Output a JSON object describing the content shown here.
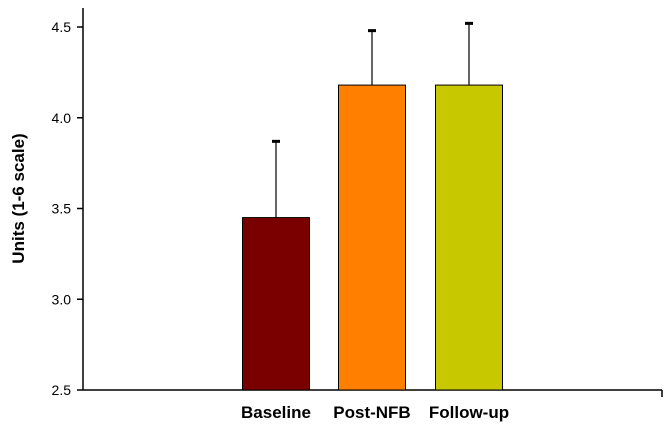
{
  "chart_data": {
    "type": "bar",
    "title": "",
    "xlabel": "",
    "ylabel": "Units (1-6 scale)",
    "ylim": [
      2.5,
      4.5
    ],
    "yticks": [
      "2.5",
      "3.0",
      "3.5",
      "4.0",
      "4.5"
    ],
    "grid": false,
    "categories": [
      "Baseline",
      "Post-NFB",
      "Follow-up"
    ],
    "values": [
      3.45,
      4.18,
      4.18
    ],
    "error_upper": [
      0.42,
      0.3,
      0.34
    ],
    "colors": [
      "#7a0000",
      "#ff7f00",
      "#c8c800"
    ]
  }
}
